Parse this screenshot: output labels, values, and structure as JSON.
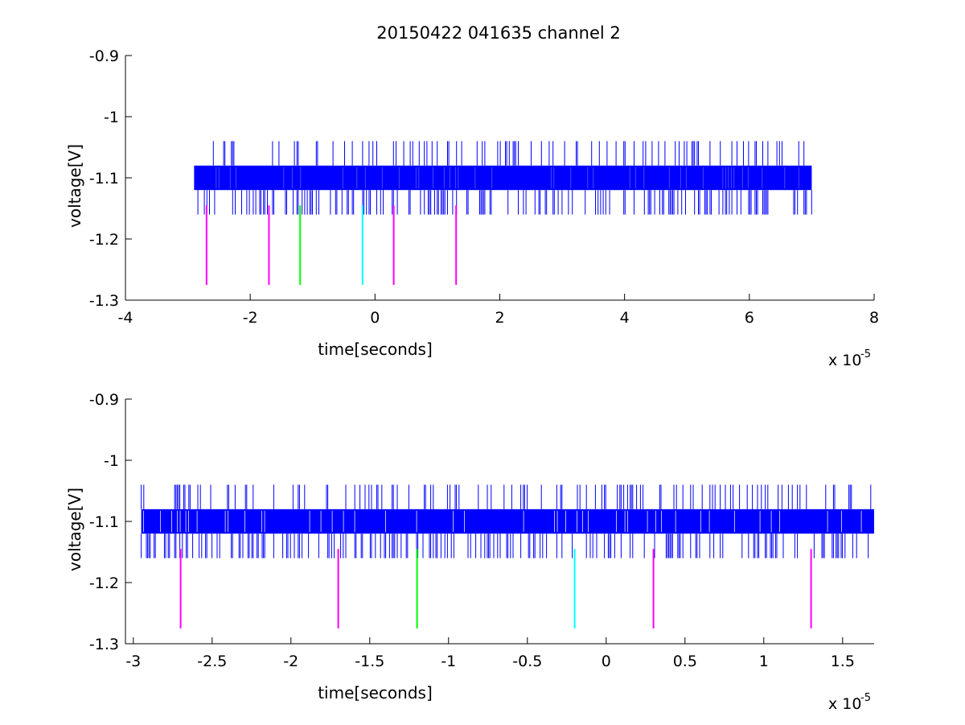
{
  "figure_title": "20150422 041635 channel 2",
  "chart_data": [
    {
      "type": "line",
      "title": "20150422 041635 channel 2",
      "xlabel": "time[seconds]",
      "ylabel": "voltage[V]",
      "x_exponent_label": "x 10",
      "x_exponent": "-5",
      "xlim": [
        -4,
        8
      ],
      "ylim": [
        -1.3,
        -0.9
      ],
      "y_reversed": true,
      "xticks": [
        -4,
        -2,
        0,
        2,
        4,
        6,
        8
      ],
      "xtick_labels": [
        "-4",
        "-2",
        "0",
        "2",
        "4",
        "6",
        "8"
      ],
      "yticks": [
        -0.9,
        -1,
        -1.1,
        -1.2,
        -1.3
      ],
      "ytick_labels": [
        "-0.9",
        "-1",
        "-1.1",
        "-1.2",
        "-1.3"
      ],
      "grid": false,
      "signal": {
        "color": "#0000ff",
        "x_range": [
          -2.9,
          7.0
        ],
        "band": [
          -1.08,
          -1.12
        ],
        "upper_spike": -1.04,
        "lower_spike": -1.16
      },
      "markers": [
        {
          "x": -2.7,
          "y": [
            -1.145,
            -1.275
          ],
          "color": "#ff00ff"
        },
        {
          "x": -1.7,
          "y": [
            -1.145,
            -1.275
          ],
          "color": "#ff00ff"
        },
        {
          "x": -1.2,
          "y": [
            -1.145,
            -1.275
          ],
          "color": "#00ff00"
        },
        {
          "x": -0.2,
          "y": [
            -1.145,
            -1.275
          ],
          "color": "#00ffff"
        },
        {
          "x": 0.3,
          "y": [
            -1.145,
            -1.275
          ],
          "color": "#ff00ff"
        },
        {
          "x": 1.3,
          "y": [
            -1.145,
            -1.275
          ],
          "color": "#ff00ff"
        }
      ]
    },
    {
      "type": "line",
      "title": "",
      "xlabel": "time[seconds]",
      "ylabel": "voltage[V]",
      "x_exponent_label": "x 10",
      "x_exponent": "-5",
      "xlim": [
        -3.05,
        1.7
      ],
      "ylim": [
        -1.3,
        -0.9
      ],
      "y_reversed": true,
      "xticks": [
        -3,
        -2.5,
        -2,
        -1.5,
        -1,
        -0.5,
        0,
        0.5,
        1,
        1.5
      ],
      "xtick_labels": [
        "-3",
        "-2.5",
        "-2",
        "-1.5",
        "-1",
        "-0.5",
        "0",
        "0.5",
        "1",
        "1.5"
      ],
      "yticks": [
        -0.9,
        -1,
        -1.1,
        -1.2,
        -1.3
      ],
      "ytick_labels": [
        "-0.9",
        "-1",
        "-1.1",
        "-1.2",
        "-1.3"
      ],
      "grid": false,
      "signal": {
        "color": "#0000ff",
        "x_range": [
          -2.95,
          1.7
        ],
        "band": [
          -1.08,
          -1.12
        ],
        "upper_spike": -1.04,
        "lower_spike": -1.16
      },
      "markers": [
        {
          "x": -2.7,
          "y": [
            -1.145,
            -1.275
          ],
          "color": "#ff00ff"
        },
        {
          "x": -1.7,
          "y": [
            -1.145,
            -1.275
          ],
          "color": "#ff00ff"
        },
        {
          "x": -1.2,
          "y": [
            -1.145,
            -1.275
          ],
          "color": "#00ff00"
        },
        {
          "x": -0.2,
          "y": [
            -1.145,
            -1.275
          ],
          "color": "#00ffff"
        },
        {
          "x": 0.3,
          "y": [
            -1.145,
            -1.275
          ],
          "color": "#ff00ff"
        },
        {
          "x": 1.3,
          "y": [
            -1.145,
            -1.275
          ],
          "color": "#ff00ff"
        }
      ]
    }
  ]
}
